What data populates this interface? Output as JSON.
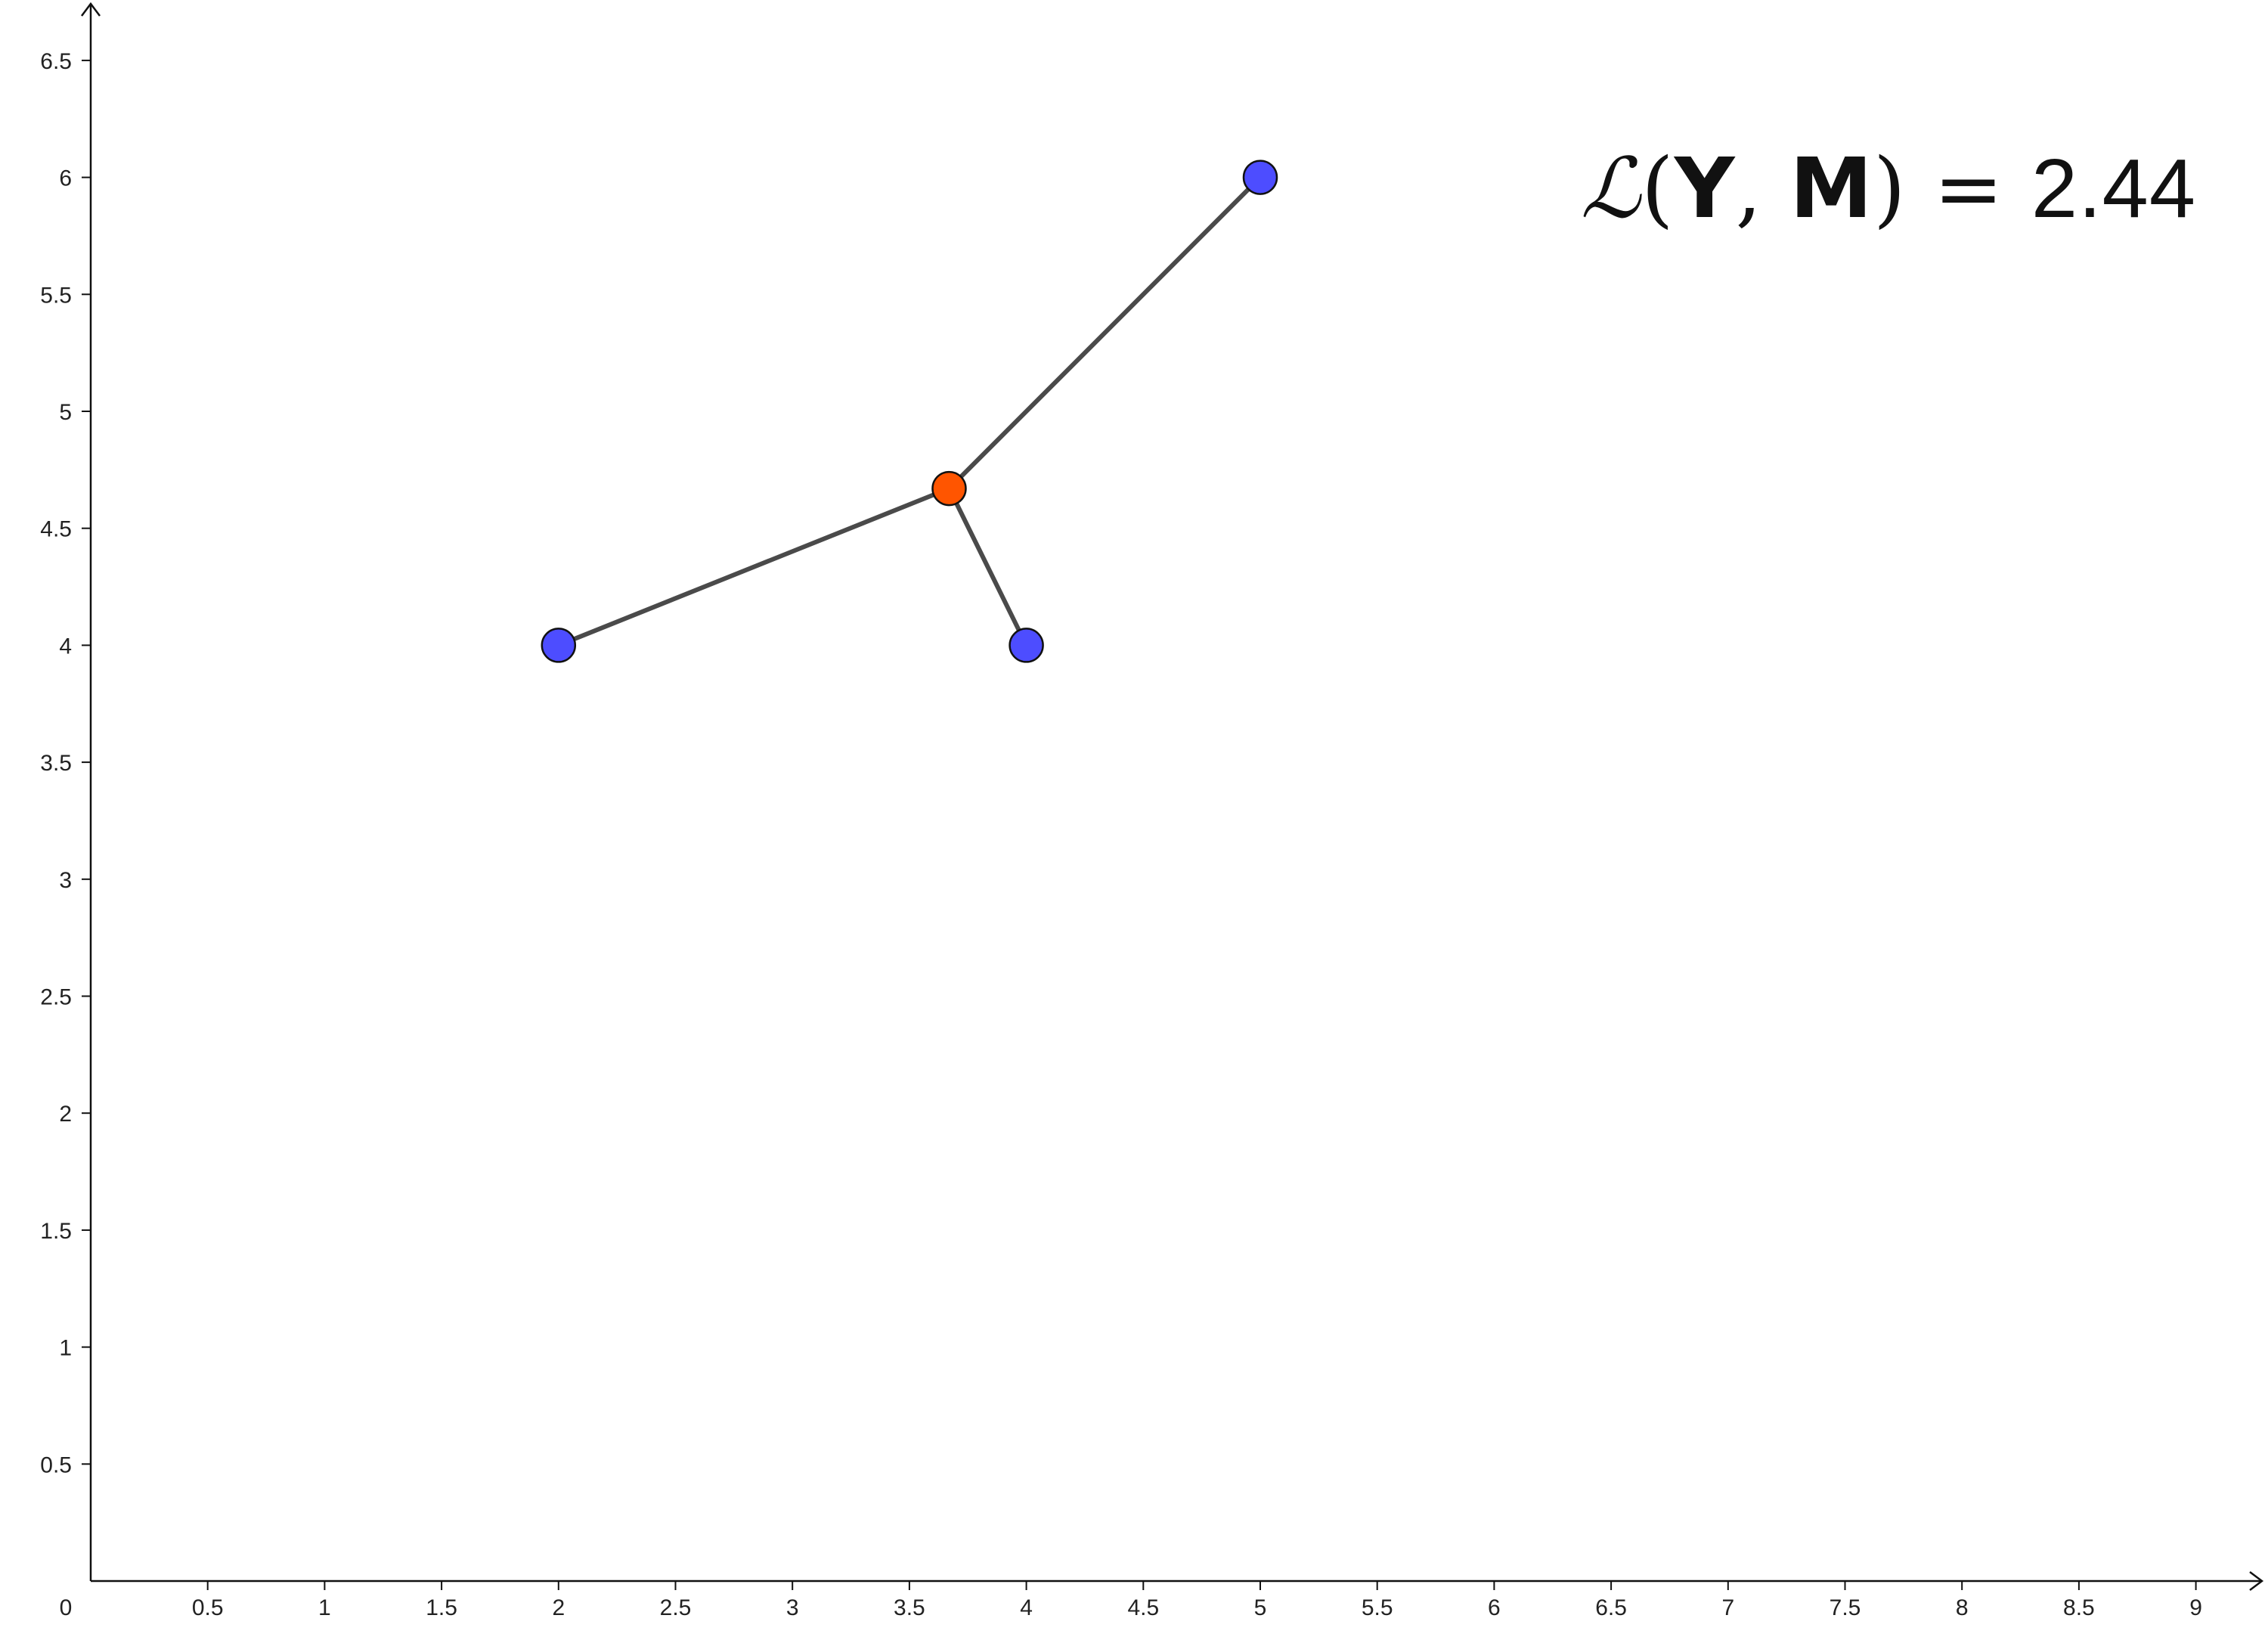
{
  "chart_data": {
    "type": "scatter",
    "title": "",
    "xlabel": "",
    "ylabel": "",
    "xlim": [
      0,
      9.3
    ],
    "ylim": [
      0,
      6.75
    ],
    "grid": false,
    "x_ticks": [
      0.5,
      1,
      1.5,
      2,
      2.5,
      3,
      3.5,
      4,
      4.5,
      5,
      5.5,
      6,
      6.5,
      7,
      7.5,
      8,
      8.5,
      9
    ],
    "y_ticks": [
      0.5,
      1,
      1.5,
      2,
      2.5,
      3,
      3.5,
      4,
      4.5,
      5,
      5.5,
      6,
      6.5
    ],
    "x_tick_labels": [
      "0.5",
      "1",
      "1.5",
      "2",
      "2.5",
      "3",
      "3.5",
      "4",
      "4.5",
      "5",
      "5.5",
      "6",
      "6.5",
      "7",
      "7.5",
      "8",
      "8.5",
      "9"
    ],
    "y_tick_labels": [
      "0.5",
      "1",
      "1.5",
      "2",
      "2.5",
      "3",
      "3.5",
      "4",
      "4.5",
      "5",
      "5.5",
      "6",
      "6.5"
    ],
    "origin_label": "0",
    "points": [
      {
        "x": 2,
        "y": 4,
        "role": "data",
        "color": "#4d4dff"
      },
      {
        "x": 4,
        "y": 4,
        "role": "data",
        "color": "#4d4dff"
      },
      {
        "x": 5,
        "y": 6,
        "role": "data",
        "color": "#4d4dff"
      },
      {
        "x": 3.67,
        "y": 4.67,
        "role": "center",
        "color": "#ff5500"
      }
    ],
    "segments": [
      {
        "from": [
          3.67,
          4.67
        ],
        "to": [
          2,
          4
        ]
      },
      {
        "from": [
          3.67,
          4.67
        ],
        "to": [
          4,
          4
        ]
      },
      {
        "from": [
          3.67,
          4.67
        ],
        "to": [
          5,
          6
        ]
      }
    ],
    "segment_color": "#4a4a4a",
    "annotation": {
      "script_letter": "ℒ",
      "open": "(",
      "arg1": "Y",
      "sep": ", ",
      "arg2": "M",
      "close": ")",
      "equals": " = ",
      "value": "2.44"
    }
  }
}
